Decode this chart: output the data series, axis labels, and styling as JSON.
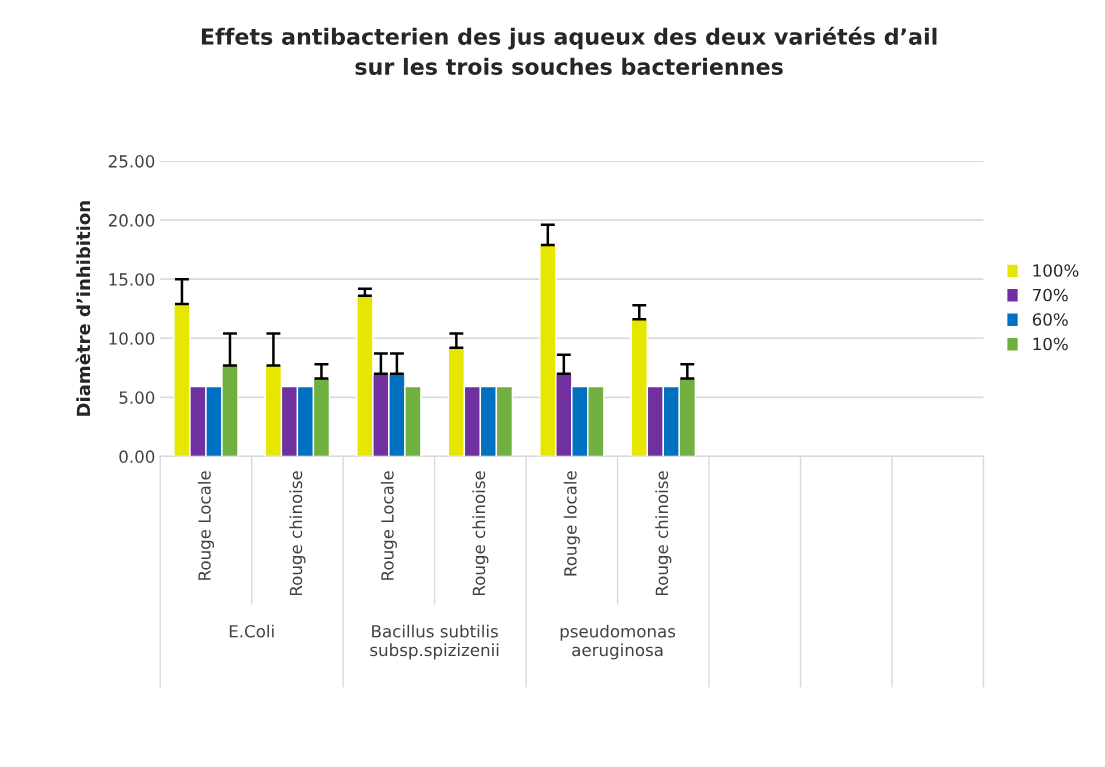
{
  "chart_data": {
    "type": "bar",
    "title": "Effets antibacterien des jus aqueux des deux variétés d’ail sur les trois souches bacteriennes",
    "ylabel": "Diamètre d’inhibition",
    "categories": [
      "Rouge Locale",
      "Rouge chinoise",
      "Rouge Locale",
      "Rouge chinoise",
      "Rouge locale",
      "Rouge chinoise",
      null,
      null,
      null
    ],
    "annotations": [
      "E.Coli",
      "Bacillus subtilis subsp.spizizenii",
      "pseudomonas aeruginosa"
    ],
    "series": [
      {
        "name": "100%",
        "color": "#e6e600",
        "values": [
          12.9,
          7.7,
          13.6,
          9.2,
          17.9,
          11.6,
          null,
          null,
          null
        ],
        "errors": [
          2.1,
          2.7,
          0.6,
          1.2,
          1.7,
          1.2,
          null,
          null,
          null
        ]
      },
      {
        "name": "70%",
        "color": "#7030a0",
        "values": [
          5.9,
          5.9,
          7.0,
          5.9,
          7.0,
          5.9,
          null,
          null,
          null
        ],
        "errors": [
          null,
          null,
          1.7,
          null,
          1.6,
          null,
          null,
          null,
          null
        ]
      },
      {
        "name": "60%",
        "color": "#0070c0",
        "values": [
          5.9,
          5.9,
          7.0,
          5.9,
          5.9,
          5.9,
          null,
          null,
          null
        ],
        "errors": [
          null,
          null,
          1.7,
          null,
          null,
          null,
          null,
          null,
          null
        ]
      },
      {
        "name": "10%",
        "color": "#70b040",
        "values": [
          7.7,
          6.6,
          5.9,
          5.9,
          5.9,
          6.6,
          null,
          null,
          null
        ],
        "errors": [
          2.7,
          1.2,
          null,
          null,
          null,
          1.2,
          null,
          null,
          null
        ]
      }
    ],
    "ylim": [
      0,
      25
    ],
    "yticks": [
      {
        "value": 0,
        "label": "0.00"
      },
      {
        "value": 5,
        "label": "5.00"
      },
      {
        "value": 10,
        "label": "10.00"
      },
      {
        "value": 15,
        "label": "15.00"
      },
      {
        "value": 20,
        "label": "20.00"
      },
      {
        "value": 25,
        "label": "25.00"
      }
    ],
    "grid": "y",
    "legend": "right"
  }
}
